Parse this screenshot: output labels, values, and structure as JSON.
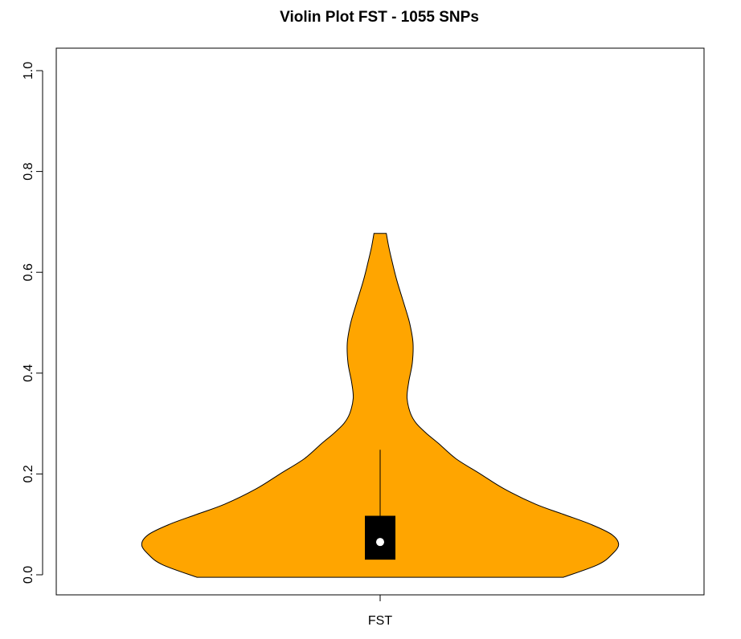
{
  "chart_data": {
    "type": "violin",
    "title": "Violin Plot FST - 1055 SNPs",
    "xlabel": "",
    "ylabel": "",
    "categories": [
      "FST"
    ],
    "ylim": [
      -0.04,
      1.04
    ],
    "yticks": [
      "0.0",
      "0.2",
      "0.4",
      "0.6",
      "0.8",
      "1.0"
    ],
    "fill_color": "#FFA500",
    "grid": false,
    "legend": "none",
    "summary": {
      "min": -0.005,
      "q1": 0.03,
      "median": 0.065,
      "q3": 0.117,
      "whisker_high": 0.248,
      "max": 0.677
    },
    "density_profile": [
      {
        "y": -0.005,
        "half_width": 0.53
      },
      {
        "y": 0.02,
        "half_width": 0.63
      },
      {
        "y": 0.04,
        "half_width": 0.67
      },
      {
        "y": 0.06,
        "half_width": 0.69
      },
      {
        "y": 0.08,
        "half_width": 0.67
      },
      {
        "y": 0.1,
        "half_width": 0.61
      },
      {
        "y": 0.12,
        "half_width": 0.53
      },
      {
        "y": 0.14,
        "half_width": 0.45
      },
      {
        "y": 0.17,
        "half_width": 0.36
      },
      {
        "y": 0.2,
        "half_width": 0.29
      },
      {
        "y": 0.23,
        "half_width": 0.22
      },
      {
        "y": 0.26,
        "half_width": 0.17
      },
      {
        "y": 0.28,
        "half_width": 0.135
      },
      {
        "y": 0.3,
        "half_width": 0.105
      },
      {
        "y": 0.32,
        "half_width": 0.088
      },
      {
        "y": 0.35,
        "half_width": 0.078
      },
      {
        "y": 0.38,
        "half_width": 0.082
      },
      {
        "y": 0.42,
        "half_width": 0.093
      },
      {
        "y": 0.46,
        "half_width": 0.095
      },
      {
        "y": 0.5,
        "half_width": 0.085
      },
      {
        "y": 0.54,
        "half_width": 0.068
      },
      {
        "y": 0.58,
        "half_width": 0.05
      },
      {
        "y": 0.62,
        "half_width": 0.035
      },
      {
        "y": 0.65,
        "half_width": 0.025
      },
      {
        "y": 0.677,
        "half_width": 0.018
      }
    ]
  }
}
